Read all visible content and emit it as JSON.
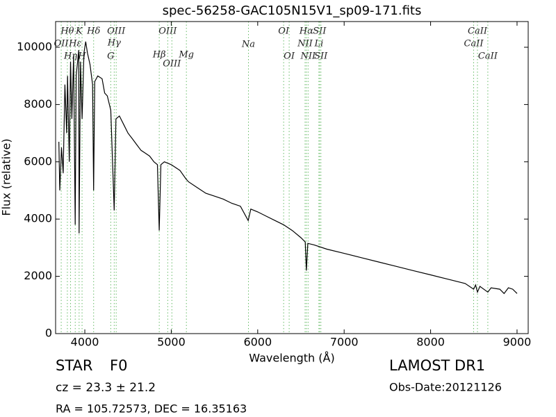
{
  "chart_data": {
    "type": "line",
    "title": "spec-56258-GAC105N15V1_sp09-171.fits",
    "x_label": "Wavelength (Å)",
    "y_label": "Flux (relative)",
    "xlim": [
      3662,
      9129
    ],
    "ylim": [
      0,
      10898
    ],
    "xticks": [
      4000,
      5000,
      6000,
      7000,
      8000,
      9000
    ],
    "yticks": [
      0,
      2000,
      4000,
      6000,
      8000,
      10000
    ],
    "x": [
      3700,
      3710,
      3730,
      3750,
      3770,
      3790,
      3800,
      3820,
      3835,
      3850,
      3870,
      3889,
      3900,
      3930,
      3934,
      3950,
      3968,
      3990,
      4010,
      4030,
      4060,
      4090,
      4102,
      4115,
      4150,
      4200,
      4230,
      4260,
      4300,
      4340,
      4360,
      4400,
      4450,
      4500,
      4550,
      4600,
      4650,
      4700,
      4750,
      4800,
      4840,
      4861,
      4880,
      4920,
      5000,
      5100,
      5170,
      5200,
      5300,
      5400,
      5500,
      5600,
      5700,
      5800,
      5890,
      5920,
      6000,
      6100,
      6200,
      6300,
      6400,
      6500,
      6550,
      6563,
      6580,
      6650,
      6800,
      7000,
      7200,
      7400,
      7600,
      7800,
      8000,
      8200,
      8400,
      8498,
      8520,
      8542,
      8570,
      8662,
      8700,
      8800,
      8850,
      8900,
      8950,
      9000
    ],
    "series": [
      {
        "color": "#000000",
        "values": [
          6700,
          5000,
          6500,
          5600,
          8700,
          7000,
          9000,
          6000,
          9500,
          7500,
          9700,
          3800,
          9000,
          9900,
          3500,
          9500,
          7500,
          9800,
          10200,
          9800,
          9400,
          8700,
          5000,
          8800,
          9000,
          8900,
          8400,
          8300,
          7800,
          4300,
          7500,
          7600,
          7300,
          7000,
          6800,
          6600,
          6400,
          6300,
          6200,
          6000,
          5900,
          3600,
          5900,
          6000,
          5900,
          5700,
          5400,
          5300,
          5100,
          4900,
          4800,
          4700,
          4550,
          4450,
          3950,
          4350,
          4250,
          4100,
          3950,
          3800,
          3600,
          3350,
          3200,
          2200,
          3150,
          3100,
          2950,
          2800,
          2650,
          2500,
          2350,
          2200,
          2050,
          1900,
          1750,
          1550,
          1700,
          1450,
          1650,
          1450,
          1600,
          1550,
          1400,
          1600,
          1550,
          1400
        ]
      }
    ],
    "marker_color": "#66bb66",
    "line_markers": [
      {
        "label": "Hθ",
        "wavelength": 3798
      },
      {
        "label": "OII",
        "wavelength": 3727
      },
      {
        "label": "Hη",
        "wavelength": 3835
      },
      {
        "label": "Hε",
        "wavelength": 3889
      },
      {
        "label": "K",
        "wavelength": 3934
      },
      {
        "label": "H",
        "wavelength": 3968
      },
      {
        "label": "Hδ",
        "wavelength": 4102
      },
      {
        "label": "Hγ",
        "wavelength": 4340
      },
      {
        "label": "G",
        "wavelength": 4300
      },
      {
        "label": "OIII",
        "wavelength": 4363
      },
      {
        "label": "Hβ",
        "wavelength": 4861
      },
      {
        "label": "OIII",
        "wavelength": 4959
      },
      {
        "label": "OIII",
        "wavelength": 5007
      },
      {
        "label": "Mg",
        "wavelength": 5175
      },
      {
        "label": "Na",
        "wavelength": 5893
      },
      {
        "label": "OI",
        "wavelength": 6300
      },
      {
        "label": "OI",
        "wavelength": 6364
      },
      {
        "label": "NII",
        "wavelength": 6548
      },
      {
        "label": "Hα",
        "wavelength": 6563
      },
      {
        "label": "NII",
        "wavelength": 6583
      },
      {
        "label": "Li",
        "wavelength": 6708
      },
      {
        "label": "SII",
        "wavelength": 6716
      },
      {
        "label": "SII",
        "wavelength": 6731
      },
      {
        "label": "CaII",
        "wavelength": 8498
      },
      {
        "label": "CaII",
        "wavelength": 8542
      },
      {
        "label": "CaII",
        "wavelength": 8662
      }
    ]
  },
  "info": {
    "class": "STAR",
    "subclass": "F0",
    "cz": "cz = 23.3  ± 21.2",
    "coords": "RA = 105.72573, DEC = 16.35163",
    "survey": "LAMOST DR1",
    "obs_date": "Obs-Date:20121126"
  }
}
